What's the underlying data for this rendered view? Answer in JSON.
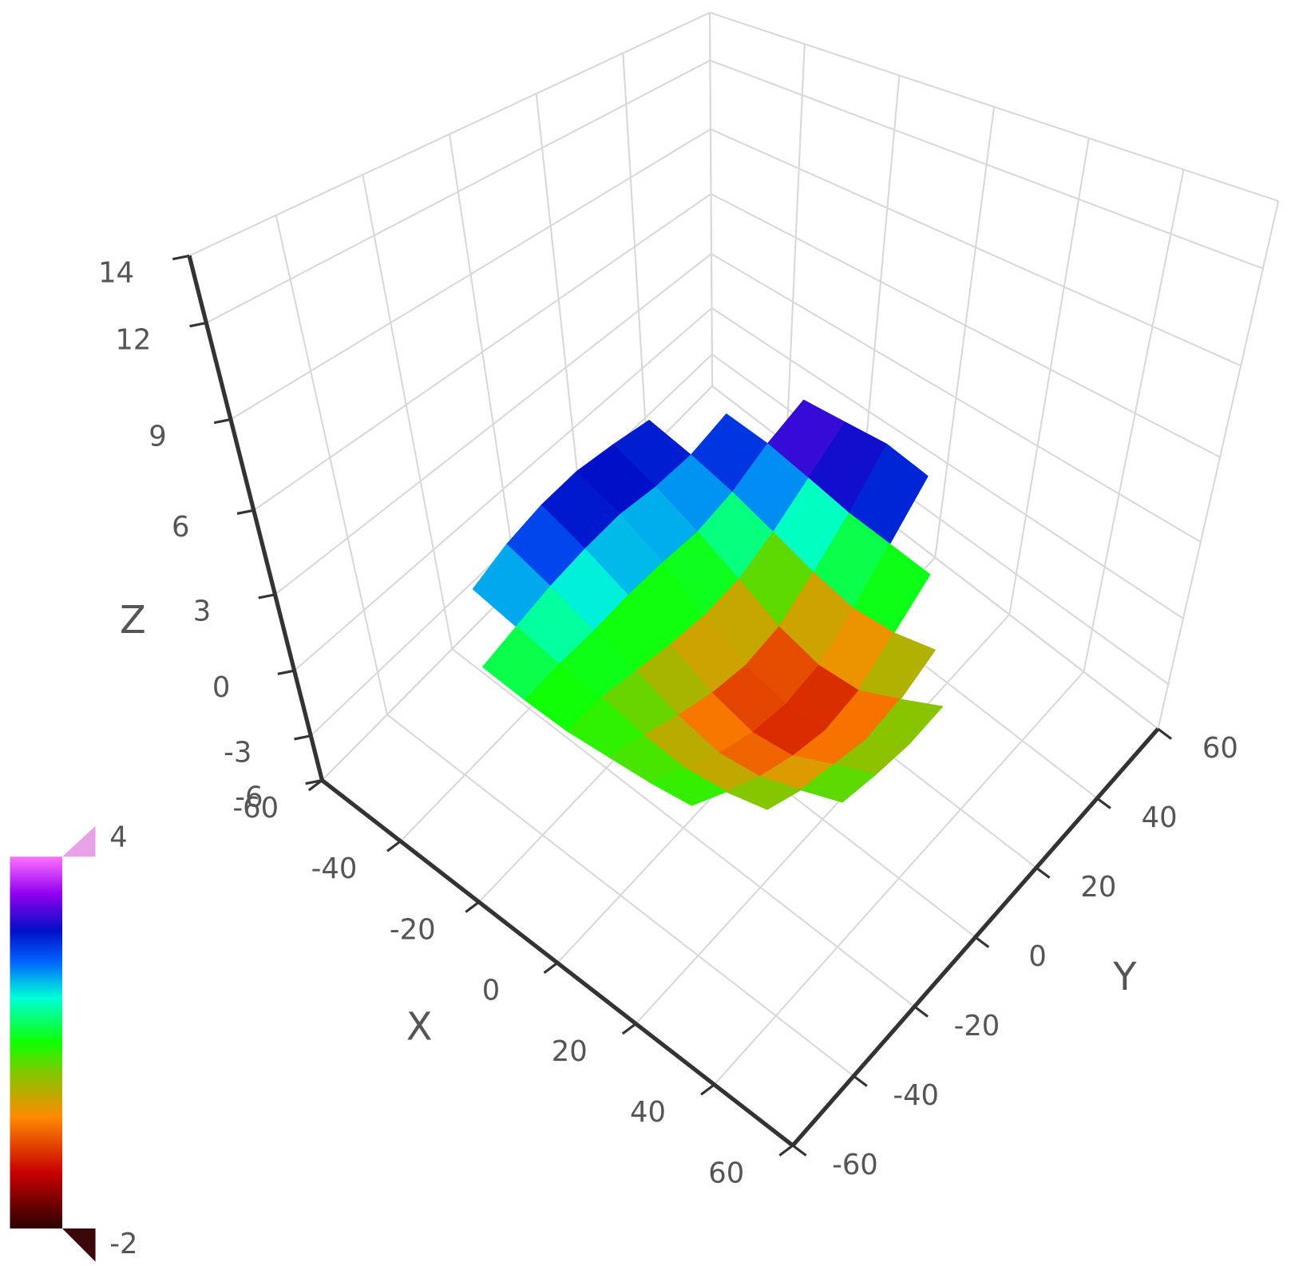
{
  "chart_data": {
    "type": "surface",
    "x_label": "X",
    "y_label": "Y",
    "z_label": "Z",
    "x": [
      -40,
      -30,
      -20,
      -10,
      0,
      10,
      20,
      30,
      40
    ],
    "y": [
      -40,
      -30,
      -20,
      -10,
      0,
      10,
      20,
      30,
      40
    ],
    "z": [
      [
        null,
        2.0,
        2.6,
        3.0,
        3.2,
        3.1,
        2.9,
        null,
        null
      ],
      [
        1.2,
        1.6,
        2.0,
        2.3,
        2.5,
        2.4,
        2.5,
        3.0,
        null
      ],
      [
        1.0,
        1.2,
        1.3,
        1.5,
        1.6,
        1.6,
        2.0,
        2.8,
        3.4
      ],
      [
        0.9,
        1.0,
        0.8,
        0.6,
        0.5,
        0.7,
        1.4,
        2.4,
        3.5
      ],
      [
        1.0,
        0.6,
        0.1,
        -0.3,
        -0.5,
        -0.2,
        0.8,
        2.0,
        3.6
      ],
      [
        1.1,
        0.4,
        -0.3,
        -0.8,
        -1.0,
        -0.7,
        0.4,
        1.8,
        3.3
      ],
      [
        1.3,
        0.6,
        -0.1,
        -0.6,
        -0.9,
        -0.6,
        0.5,
        1.6,
        null
      ],
      [
        null,
        1.0,
        0.5,
        0.2,
        -0.1,
        0.2,
        0.9,
        null,
        null
      ],
      [
        null,
        null,
        1.1,
        0.9,
        0.8,
        1.0,
        null,
        null,
        null
      ]
    ],
    "xlim": [
      -60,
      60
    ],
    "ylim": [
      -60,
      60
    ],
    "zlim": [
      -6,
      14
    ],
    "xticks": [
      -60,
      -40,
      -20,
      0,
      20,
      40,
      60
    ],
    "yticks": [
      -60,
      -40,
      -20,
      0,
      20,
      40,
      60
    ],
    "zticks": [
      -6,
      -3,
      0,
      3,
      6,
      9,
      12,
      14
    ],
    "clim": [
      -2,
      4
    ],
    "colorscale": [
      [
        0,
        "#2b0000"
      ],
      [
        0.15,
        "#c80000"
      ],
      [
        0.3,
        "#ff8a00"
      ],
      [
        0.42,
        "#80c800"
      ],
      [
        0.5,
        "#10ff00"
      ],
      [
        0.62,
        "#00ffd8"
      ],
      [
        0.72,
        "#0060ff"
      ],
      [
        0.8,
        "#0010c8"
      ],
      [
        0.9,
        "#9000f0"
      ],
      [
        1,
        "#ff70ff"
      ]
    ],
    "under_color": "#3a0808",
    "over_color": "#e8a0e8",
    "grid": true
  }
}
